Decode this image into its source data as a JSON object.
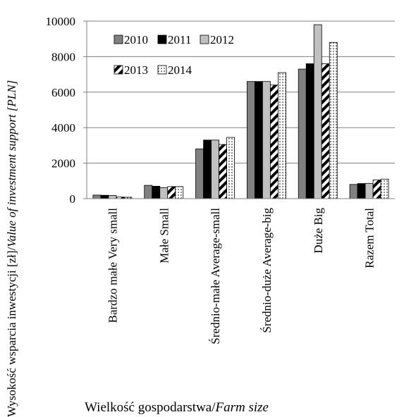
{
  "chart_data": {
    "type": "bar",
    "title": "",
    "xlabel": "Wielkość gospodarstwa/",
    "xlabel_italic": "Farm size",
    "ylabel": "Wysokość wsparcia inwestycji [zł]/",
    "ylabel_italic": "Value of investment support [PLN]",
    "ylim": [
      0,
      10000
    ],
    "yticks": [
      0,
      2000,
      4000,
      6000,
      8000,
      10000
    ],
    "grid": true,
    "legend_position": "top-left",
    "categories": [
      "Bardzo małe Very small",
      "Małe Small",
      "Średnio-małe Average-small",
      "Średnio-duże Average-big",
      "Duże Big",
      "Razem Total"
    ],
    "series": [
      {
        "name": "2010",
        "fill": "solid",
        "color": "#808080",
        "values": [
          200,
          750,
          2800,
          6600,
          7300,
          800
        ]
      },
      {
        "name": "2011",
        "fill": "solid",
        "color": "#000000",
        "values": [
          190,
          700,
          3300,
          6600,
          7600,
          850
        ]
      },
      {
        "name": "2012",
        "fill": "solid",
        "color": "#c0c0c0",
        "values": [
          180,
          620,
          3300,
          6600,
          9800,
          860
        ]
      },
      {
        "name": "2013",
        "fill": "diagonal-stripes",
        "color": "#000000",
        "values": [
          90,
          680,
          3050,
          6400,
          7600,
          1050
        ]
      },
      {
        "name": "2014",
        "fill": "dots",
        "color": "#000000",
        "values": [
          80,
          680,
          3450,
          7100,
          8800,
          1100
        ]
      }
    ]
  }
}
